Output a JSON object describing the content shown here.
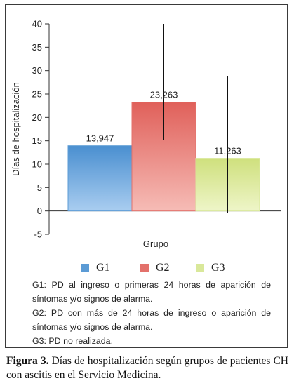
{
  "chart_data": {
    "type": "bar",
    "title": "",
    "xlabel": "Grupo",
    "ylabel": "Días de hospitalización",
    "ylim": [
      -5,
      40
    ],
    "yticks": [
      -5,
      0,
      5,
      10,
      15,
      20,
      25,
      30,
      35,
      40
    ],
    "grid": false,
    "legend": "bottom",
    "series": [
      {
        "name": "G1",
        "value": 13.947,
        "label": "13,947",
        "error_low": 9.2,
        "error_high": 28.8,
        "color": "#5b9bd5"
      },
      {
        "name": "G2",
        "value": 23.263,
        "label": "23,263",
        "error_low": 15.2,
        "error_high": 40,
        "color": "#e3716b"
      },
      {
        "name": "G3",
        "value": 11.263,
        "label": "11,263",
        "error_low": -0.5,
        "error_high": 28.8,
        "color": "#d9e89a"
      }
    ]
  },
  "notes": [
    "G1: PD al ingreso o primeras 24 horas de aparición de síntomas y/o signos de alarma.",
    "G2: PD con más de 24 horas de ingreso o aparición de síntomas y/o signos de alarma.",
    "G3: PD no realizada."
  ],
  "caption": {
    "label": "Figura 3.",
    "text": "Días de hospitalización según grupos de pacientes CH con ascitis en el Servicio Medicina."
  }
}
